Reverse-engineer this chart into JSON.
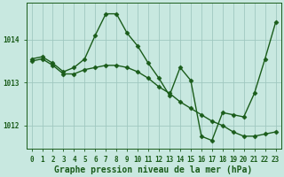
{
  "line1_x": [
    0,
    1,
    2,
    3,
    4,
    5,
    6,
    7,
    8,
    9,
    10,
    11,
    12,
    13,
    14,
    15,
    16,
    17,
    18,
    19,
    20,
    21,
    22,
    23
  ],
  "line1_y": [
    1013.55,
    1013.6,
    1013.45,
    1013.25,
    1013.35,
    1013.55,
    1014.1,
    1014.6,
    1014.6,
    1014.15,
    1013.85,
    1013.45,
    1013.1,
    1012.7,
    1013.35,
    1013.05,
    1011.75,
    1011.65,
    1012.3,
    1012.25,
    1012.2,
    1012.75,
    1013.55,
    1014.4
  ],
  "line2_x": [
    0,
    1,
    2,
    3,
    4,
    5,
    6,
    7,
    8,
    9,
    10,
    11,
    12,
    13,
    14,
    15,
    16,
    17,
    18,
    19,
    20,
    21,
    22,
    23
  ],
  "line2_y": [
    1013.5,
    1013.55,
    1013.4,
    1013.2,
    1013.2,
    1013.3,
    1013.35,
    1013.4,
    1013.4,
    1013.35,
    1013.25,
    1013.1,
    1012.9,
    1012.75,
    1012.55,
    1012.4,
    1012.25,
    1012.1,
    1012.0,
    1011.85,
    1011.75,
    1011.75,
    1011.8,
    1011.85
  ],
  "line_color": "#1a5c1a",
  "marker": "D",
  "markersize": 2.5,
  "linewidth": 1.0,
  "xlim": [
    -0.5,
    23.5
  ],
  "ylim": [
    1011.45,
    1014.85
  ],
  "yticks": [
    1012,
    1013,
    1014
  ],
  "xticks": [
    0,
    1,
    2,
    3,
    4,
    5,
    6,
    7,
    8,
    9,
    10,
    11,
    12,
    13,
    14,
    15,
    16,
    17,
    18,
    19,
    20,
    21,
    22,
    23
  ],
  "xlabel": "Graphe pression niveau de la mer (hPa)",
  "bg_color": "#c8e8e0",
  "plot_bg_color": "#c8e8e0",
  "grid_color": "#a0c8c0",
  "tick_color": "#1a5c1a",
  "label_color": "#1a5c1a",
  "tick_fontsize": 5.5,
  "xlabel_fontsize": 7.0
}
